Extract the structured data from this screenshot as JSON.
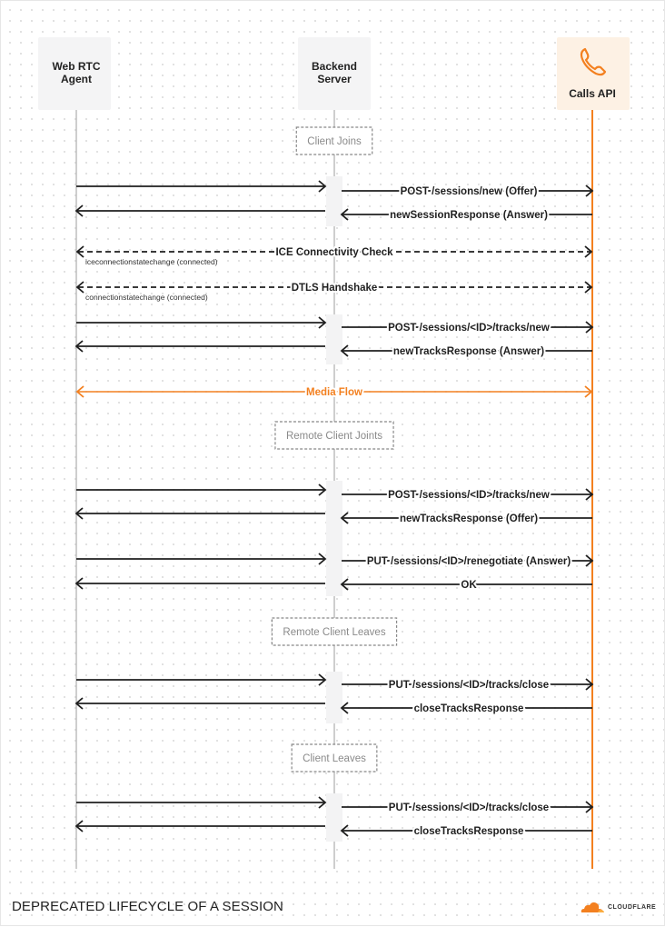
{
  "participants": [
    {
      "id": "agent",
      "label_lines": [
        "Web RTC",
        "Agent"
      ]
    },
    {
      "id": "backend",
      "label_lines": [
        "Backend",
        "Server"
      ]
    },
    {
      "id": "calls",
      "label_lines": [
        "Calls API"
      ],
      "icon": "phone-icon"
    }
  ],
  "events": [
    {
      "type": "section",
      "label": "Client Joins"
    },
    {
      "type": "msg",
      "from": "agent",
      "to": "backend",
      "label": ""
    },
    {
      "type": "msg",
      "from": "backend",
      "to": "calls",
      "label": "POST /sessions/new (Offer)"
    },
    {
      "type": "msg",
      "from": "calls",
      "to": "backend",
      "label": "newSessionResponse (Answer)"
    },
    {
      "type": "msg",
      "from": "backend",
      "to": "agent",
      "label": ""
    },
    {
      "type": "both",
      "style": "dashed",
      "label": "ICE Connectivity Check",
      "note": "iceconnectionstatechange (connected)"
    },
    {
      "type": "both",
      "style": "dashed",
      "label": "DTLS Handshake",
      "note": "connectionstatechange (connected)"
    },
    {
      "type": "msg",
      "from": "agent",
      "to": "backend",
      "label": ""
    },
    {
      "type": "msg",
      "from": "backend",
      "to": "calls",
      "label": "POST /sessions/<ID>/tracks/new"
    },
    {
      "type": "msg",
      "from": "calls",
      "to": "backend",
      "label": "newTracksResponse (Answer)"
    },
    {
      "type": "msg",
      "from": "backend",
      "to": "agent",
      "label": ""
    },
    {
      "type": "both",
      "style": "media",
      "label": "Media Flow"
    },
    {
      "type": "section",
      "label": "Remote Client Joints"
    },
    {
      "type": "msg",
      "from": "agent",
      "to": "backend",
      "label": ""
    },
    {
      "type": "msg",
      "from": "backend",
      "to": "calls",
      "label": "POST /sessions/<ID>/tracks/new"
    },
    {
      "type": "msg",
      "from": "calls",
      "to": "backend",
      "label": "newTracksResponse (Offer)"
    },
    {
      "type": "msg",
      "from": "backend",
      "to": "agent",
      "label": ""
    },
    {
      "type": "msg",
      "from": "agent",
      "to": "backend",
      "label": ""
    },
    {
      "type": "msg",
      "from": "backend",
      "to": "calls",
      "label": "PUT /sessions/<ID>/renegotiate (Answer)"
    },
    {
      "type": "msg",
      "from": "calls",
      "to": "backend",
      "label": "OK"
    },
    {
      "type": "msg",
      "from": "backend",
      "to": "agent",
      "label": ""
    },
    {
      "type": "section",
      "label": "Remote Client Leaves"
    },
    {
      "type": "msg",
      "from": "agent",
      "to": "backend",
      "label": ""
    },
    {
      "type": "msg",
      "from": "backend",
      "to": "calls",
      "label": "PUT /sessions/<ID>/tracks/close"
    },
    {
      "type": "msg",
      "from": "calls",
      "to": "backend",
      "label": "closeTracksResponse"
    },
    {
      "type": "msg",
      "from": "backend",
      "to": "agent",
      "label": ""
    },
    {
      "type": "section",
      "label": "Client Leaves"
    },
    {
      "type": "msg",
      "from": "agent",
      "to": "backend",
      "label": ""
    },
    {
      "type": "msg",
      "from": "backend",
      "to": "calls",
      "label": "PUT /sessions/<ID>/tracks/close"
    },
    {
      "type": "msg",
      "from": "calls",
      "to": "backend",
      "label": "closeTracksResponse"
    },
    {
      "type": "msg",
      "from": "backend",
      "to": "agent",
      "label": ""
    }
  ],
  "footer": {
    "title": "DEPRECATED LIFECYCLE OF A SESSION",
    "logo_text": "CLOUDFLARE"
  },
  "colors": {
    "accent": "#f38020",
    "line": "#1f1f1f",
    "lifeline": "#bdbdbd",
    "section_text": "#8a8a8a",
    "box": "#f4f4f5",
    "calls_box": "#fdf1e4"
  }
}
